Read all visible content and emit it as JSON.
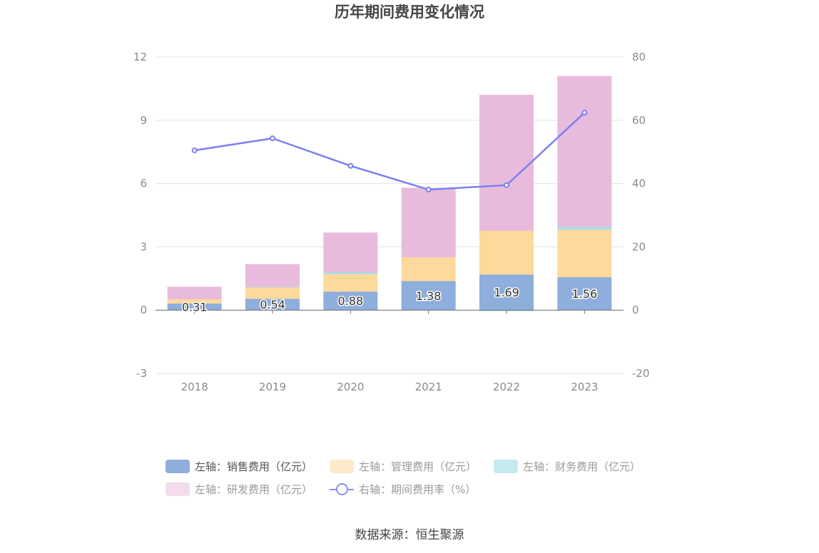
{
  "chart_data": {
    "type": "bar",
    "title": "历年期间费用变化情况",
    "categories": [
      "2018",
      "2019",
      "2020",
      "2021",
      "2022",
      "2023"
    ],
    "left_axis": {
      "ylim": [
        -3,
        12
      ],
      "ticks": [
        -3,
        0,
        3,
        6,
        9,
        12
      ]
    },
    "right_axis": {
      "ylim": [
        -20,
        80
      ],
      "ticks": [
        -20,
        0,
        20,
        40,
        60,
        80
      ]
    },
    "series": [
      {
        "name": "左轴：销售费用（亿元）",
        "stack": "left",
        "color": "#8eaedc",
        "values": [
          0.31,
          0.54,
          0.88,
          1.38,
          1.69,
          1.56
        ],
        "labels": [
          "0.31",
          "0.54",
          "0.88",
          "1.38",
          "1.69",
          "1.56"
        ]
      },
      {
        "name": "左轴：管理费用（亿元）",
        "stack": "left",
        "color": "#fdd99b",
        "values": [
          0.2,
          0.55,
          0.82,
          1.12,
          2.07,
          2.25
        ]
      },
      {
        "name": "左轴：财务费用（亿元）",
        "stack": "left",
        "color": "#a6dfe4",
        "values": [
          0.0,
          0.01,
          0.08,
          0.0,
          -0.05,
          0.13
        ]
      },
      {
        "name": "左轴：研发费用（亿元）",
        "stack": "left",
        "color": "#e8bbdc",
        "values": [
          0.6,
          1.08,
          1.9,
          3.3,
          6.45,
          7.16
        ]
      },
      {
        "name": "右轴：期间费用率（%）",
        "type": "line",
        "axis": "right",
        "color": "#7b7ff0",
        "values": [
          50.5,
          54.3,
          45.6,
          38.1,
          39.5,
          62.4
        ]
      }
    ]
  },
  "legend": {
    "items": [
      {
        "label": "左轴：销售费用（亿元）",
        "color": "#8eaedc"
      },
      {
        "label": "左轴：管理费用（亿元）",
        "color": "#fdeacb"
      },
      {
        "label": "左轴：财务费用（亿元）",
        "color": "#c4eaee"
      },
      {
        "label": "左轴：研发费用（亿元）",
        "color": "#f2dced"
      },
      {
        "label": "右轴：期间费用率（%）",
        "color": "#8a90f0"
      }
    ]
  },
  "footer": {
    "source": "数据来源：恒生聚源"
  }
}
